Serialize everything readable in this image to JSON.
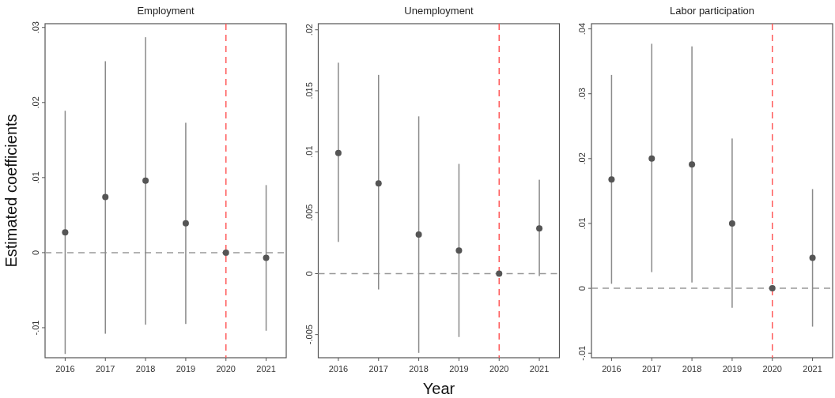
{
  "chart_data": [
    {
      "type": "scatter",
      "title": "Employment",
      "ylabel": "Estimated coefficients",
      "categories": [
        "2016",
        "2017",
        "2018",
        "2019",
        "2020",
        "2021"
      ],
      "series": [
        {
          "color": "#555555",
          "values": [
            0.0027,
            0.0074,
            0.0096,
            0.0039,
            0,
            -0.0007
          ],
          "errors": [
            [
              -0.0135,
              0.0189
            ],
            [
              -0.0108,
              0.0255
            ],
            [
              -0.0096,
              0.0287
            ],
            [
              -0.0095,
              0.0173
            ],
            null,
            [
              -0.0104,
              0.009
            ]
          ]
        }
      ],
      "ylim": [
        -0.014,
        0.0305
      ],
      "yticks": [
        {
          "value": -0.01,
          "label": "-.01"
        },
        {
          "value": 0,
          "label": "0"
        },
        {
          "value": 0.01,
          "label": ".01"
        },
        {
          "value": 0.02,
          "label": ".02"
        },
        {
          "value": 0.03,
          "label": ".03"
        }
      ],
      "ref_lines": [
        {
          "axis": "y",
          "value": 0,
          "color": "#999999",
          "line_style": "dashed"
        },
        {
          "axis": "x",
          "value": "2020",
          "color": "#ff5a5a",
          "line_style": "dashed"
        }
      ],
      "marker": "circle"
    },
    {
      "type": "scatter",
      "title": "Unemployment",
      "xlabel": "Year",
      "categories": [
        "2016",
        "2017",
        "2018",
        "2019",
        "2020",
        "2021"
      ],
      "series": [
        {
          "color": "#555555",
          "values": [
            0.0099,
            0.0074,
            0.0032,
            0.0019,
            0,
            0.0037
          ],
          "errors": [
            [
              0.0026,
              0.0173
            ],
            [
              -0.0013,
              0.0163
            ],
            [
              -0.0065,
              0.0129
            ],
            [
              -0.0052,
              0.009
            ],
            null,
            [
              -0.0002,
              0.0077
            ]
          ]
        }
      ],
      "ylim": [
        -0.0069,
        0.0205
      ],
      "yticks": [
        {
          "value": -0.005,
          "label": "-.005"
        },
        {
          "value": 0,
          "label": "0"
        },
        {
          "value": 0.005,
          "label": ".005"
        },
        {
          "value": 0.01,
          "label": ".01"
        },
        {
          "value": 0.015,
          "label": ".015"
        },
        {
          "value": 0.02,
          "label": ".02"
        }
      ],
      "ref_lines": [
        {
          "axis": "y",
          "value": 0,
          "color": "#999999",
          "line_style": "dashed"
        },
        {
          "axis": "x",
          "value": "2020",
          "color": "#ff5a5a",
          "line_style": "dashed"
        }
      ],
      "marker": "circle"
    },
    {
      "type": "scatter",
      "title": "Labor participation",
      "categories": [
        "2016",
        "2017",
        "2018",
        "2019",
        "2020",
        "2021"
      ],
      "series": [
        {
          "color": "#555555",
          "values": [
            0.0168,
            0.02,
            0.0191,
            0.01,
            0,
            0.0047
          ],
          "errors": [
            [
              0.0007,
              0.0329
            ],
            [
              0.0025,
              0.0377
            ],
            [
              0.0009,
              0.0373
            ],
            [
              -0.003,
              0.0231
            ],
            null,
            [
              -0.0059,
              0.0153
            ]
          ]
        }
      ],
      "ylim": [
        -0.0107,
        0.0408
      ],
      "yticks": [
        {
          "value": -0.01,
          "label": "-.01"
        },
        {
          "value": 0,
          "label": "0"
        },
        {
          "value": 0.01,
          "label": ".01"
        },
        {
          "value": 0.02,
          "label": ".02"
        },
        {
          "value": 0.03,
          "label": ".03"
        },
        {
          "value": 0.04,
          "label": ".04"
        }
      ],
      "ref_lines": [
        {
          "axis": "y",
          "value": 0,
          "color": "#999999",
          "line_style": "dashed"
        },
        {
          "axis": "x",
          "value": "2020",
          "color": "#ff5a5a",
          "line_style": "dashed"
        }
      ],
      "marker": "circle"
    }
  ]
}
